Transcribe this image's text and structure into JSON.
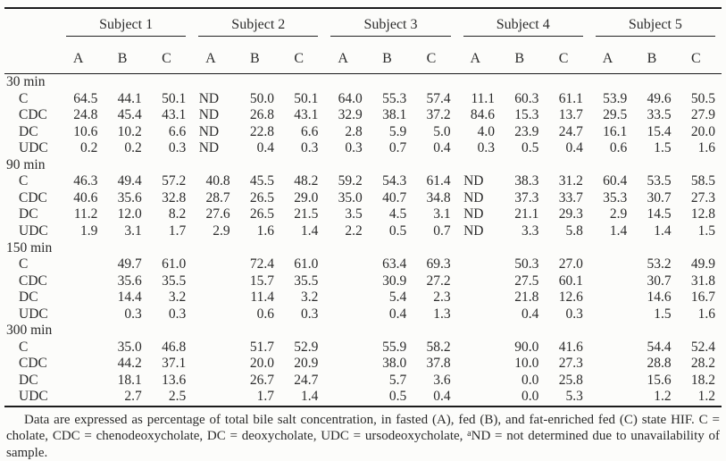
{
  "table": {
    "subjects": [
      "Subject 1",
      "Subject 2",
      "Subject 3",
      "Subject 4",
      "Subject 5"
    ],
    "subcols": [
      "A",
      "B",
      "C"
    ],
    "groups": [
      {
        "time": "30 min",
        "rows": [
          {
            "label": "C",
            "values": [
              "64.5",
              "44.1",
              "50.1",
              "ND",
              "50.0",
              "50.1",
              "64.0",
              "55.3",
              "57.4",
              "11.1",
              "60.3",
              "61.1",
              "53.9",
              "49.6",
              "50.5"
            ]
          },
          {
            "label": "CDC",
            "values": [
              "24.8",
              "45.4",
              "43.1",
              "ND",
              "26.8",
              "43.1",
              "32.9",
              "38.1",
              "37.2",
              "84.6",
              "15.3",
              "13.7",
              "29.5",
              "33.5",
              "27.9"
            ]
          },
          {
            "label": "DC",
            "values": [
              "10.6",
              "10.2",
              "6.6",
              "ND",
              "22.8",
              "6.6",
              "2.8",
              "5.9",
              "5.0",
              "4.0",
              "23.9",
              "24.7",
              "16.1",
              "15.4",
              "20.0"
            ]
          },
          {
            "label": "UDC",
            "values": [
              "0.2",
              "0.2",
              "0.3",
              "ND",
              "0.4",
              "0.3",
              "0.3",
              "0.7",
              "0.4",
              "0.3",
              "0.5",
              "0.4",
              "0.6",
              "1.5",
              "1.6"
            ]
          }
        ]
      },
      {
        "time": "90 min",
        "rows": [
          {
            "label": "C",
            "values": [
              "46.3",
              "49.4",
              "57.2",
              "40.8",
              "45.5",
              "48.2",
              "59.2",
              "54.3",
              "61.4",
              "ND",
              "38.3",
              "31.2",
              "60.4",
              "53.5",
              "58.5"
            ]
          },
          {
            "label": "CDC",
            "values": [
              "40.6",
              "35.6",
              "32.8",
              "28.7",
              "26.5",
              "29.0",
              "35.0",
              "40.7",
              "34.8",
              "ND",
              "37.3",
              "33.7",
              "35.3",
              "30.7",
              "27.3"
            ]
          },
          {
            "label": "DC",
            "values": [
              "11.2",
              "12.0",
              "8.2",
              "27.6",
              "26.5",
              "21.5",
              "3.5",
              "4.5",
              "3.1",
              "ND",
              "21.1",
              "29.3",
              "2.9",
              "14.5",
              "12.8"
            ]
          },
          {
            "label": "UDC",
            "values": [
              "1.9",
              "3.1",
              "1.7",
              "2.9",
              "1.6",
              "1.4",
              "2.2",
              "0.5",
              "0.7",
              "ND",
              "3.3",
              "5.8",
              "1.4",
              "1.4",
              "1.5"
            ]
          }
        ]
      },
      {
        "time": "150 min",
        "rows": [
          {
            "label": "C",
            "values": [
              "",
              "49.7",
              "61.0",
              "",
              "72.4",
              "61.0",
              "",
              "63.4",
              "69.3",
              "",
              "50.3",
              "27.0",
              "",
              "53.2",
              "49.9"
            ]
          },
          {
            "label": "CDC",
            "values": [
              "",
              "35.6",
              "35.5",
              "",
              "15.7",
              "35.5",
              "",
              "30.9",
              "27.2",
              "",
              "27.5",
              "60.1",
              "",
              "30.7",
              "31.8"
            ]
          },
          {
            "label": "DC",
            "values": [
              "",
              "14.4",
              "3.2",
              "",
              "11.4",
              "3.2",
              "",
              "5.4",
              "2.3",
              "",
              "21.8",
              "12.6",
              "",
              "14.6",
              "16.7"
            ]
          },
          {
            "label": "UDC",
            "values": [
              "",
              "0.3",
              "0.3",
              "",
              "0.6",
              "0.3",
              "",
              "0.4",
              "1.3",
              "",
              "0.4",
              "0.3",
              "",
              "1.5",
              "1.6"
            ]
          }
        ]
      },
      {
        "time": "300 min",
        "rows": [
          {
            "label": "C",
            "values": [
              "",
              "35.0",
              "46.8",
              "",
              "51.7",
              "52.9",
              "",
              "55.9",
              "58.2",
              "",
              "90.0",
              "41.6",
              "",
              "54.4",
              "52.4"
            ]
          },
          {
            "label": "CDC",
            "values": [
              "",
              "44.2",
              "37.1",
              "",
              "20.0",
              "20.9",
              "",
              "38.0",
              "37.8",
              "",
              "10.0",
              "27.3",
              "",
              "28.8",
              "28.2"
            ]
          },
          {
            "label": "DC",
            "values": [
              "",
              "18.1",
              "13.6",
              "",
              "26.7",
              "24.7",
              "",
              "5.7",
              "3.6",
              "",
              "0.0",
              "25.8",
              "",
              "15.6",
              "18.2"
            ]
          },
          {
            "label": "UDC",
            "values": [
              "",
              "2.7",
              "2.5",
              "",
              "1.7",
              "1.4",
              "",
              "0.5",
              "0.4",
              "",
              "0.0",
              "5.3",
              "",
              "1.2",
              "1.2"
            ]
          }
        ]
      }
    ]
  },
  "footnote": {
    "part1": "Data are expressed as percentage of total bile salt concentration, in fasted (A), fed (B), and fat-enriched fed (C) state HIF. C = cholate, CDC = chenodeoxycholate, DC = deoxycholate, UDC = ursodeoxycholate, ",
    "sup": "a",
    "part2": "ND = not determined due to unavailability of sample."
  }
}
